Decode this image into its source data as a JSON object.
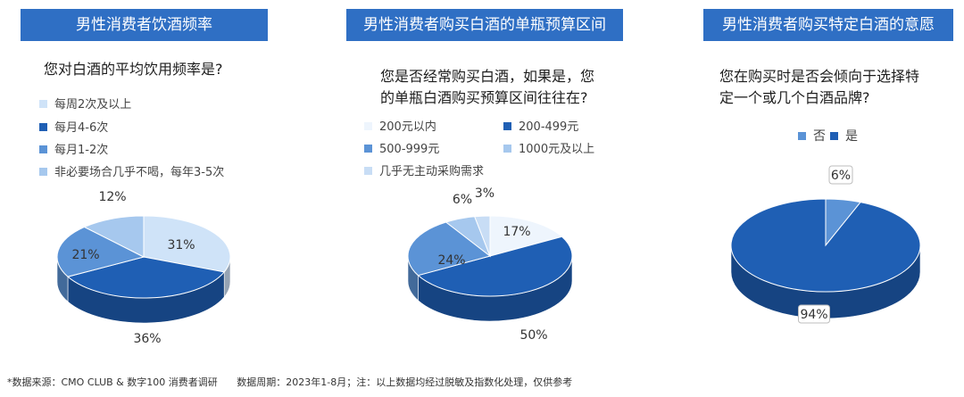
{
  "chart_data": [
    {
      "type": "pie",
      "title": "男性消费者饮酒频率",
      "question": "您对白酒的平均饮用频率是?",
      "series": [
        {
          "name": "每周2次及以上",
          "value": 31,
          "label": "31%",
          "color": "#cfe3f8"
        },
        {
          "name": "每月4-6次",
          "value": 36,
          "label": "36%",
          "color": "#1f5fb4"
        },
        {
          "name": "每月1-2次",
          "value": 21,
          "label": "21%",
          "color": "#5b93d6"
        },
        {
          "name": "非必要场合几乎不喝，每年3-5次",
          "value": 12,
          "label": "12%",
          "color": "#a6c8ee"
        }
      ]
    },
    {
      "type": "pie",
      "title": "男性消费者购买白酒的单瓶预算区间",
      "question": "您是否经常购买白酒，如果是，您的单瓶白酒购买预算区间往往在?",
      "question_lines": [
        "您是否经常购买白酒，如果是，您",
        "的单瓶白酒购买预算区间往往在?"
      ],
      "series": [
        {
          "name": "200元以内",
          "value": 17,
          "label": "17%",
          "color": "#eef5fd"
        },
        {
          "name": "200-499元",
          "value": 50,
          "label": "50%",
          "color": "#1f5fb4"
        },
        {
          "name": "500-999元",
          "value": 24,
          "label": "24%",
          "color": "#5b93d6"
        },
        {
          "name": "1000元及以上",
          "value": 6,
          "label": "6%",
          "color": "#a6c8ee"
        },
        {
          "name": "几乎无主动采购需求",
          "value": 3,
          "label": "3%",
          "color": "#c8ddf5"
        }
      ]
    },
    {
      "type": "pie",
      "title": "男性消费者购买特定白酒的意愿",
      "question": "您在购买时是否会倾向于选择特定一个或几个白酒品牌?",
      "question_lines": [
        "您在购买时是否会倾向于选择特",
        "定一个或几个白酒品牌?"
      ],
      "series": [
        {
          "name": "否",
          "value": 6,
          "label": "6%",
          "color": "#5b93d6"
        },
        {
          "name": "是",
          "value": 94,
          "label": "94%",
          "color": "#1f5fb4"
        }
      ]
    }
  ],
  "footnote": {
    "source": "*数据来源：CMO CLUB & 数字100 消费者调研",
    "period": "数据周期：2023年1-8月；注：以上数据均经过脱敏及指数化处理，仅供参考"
  }
}
